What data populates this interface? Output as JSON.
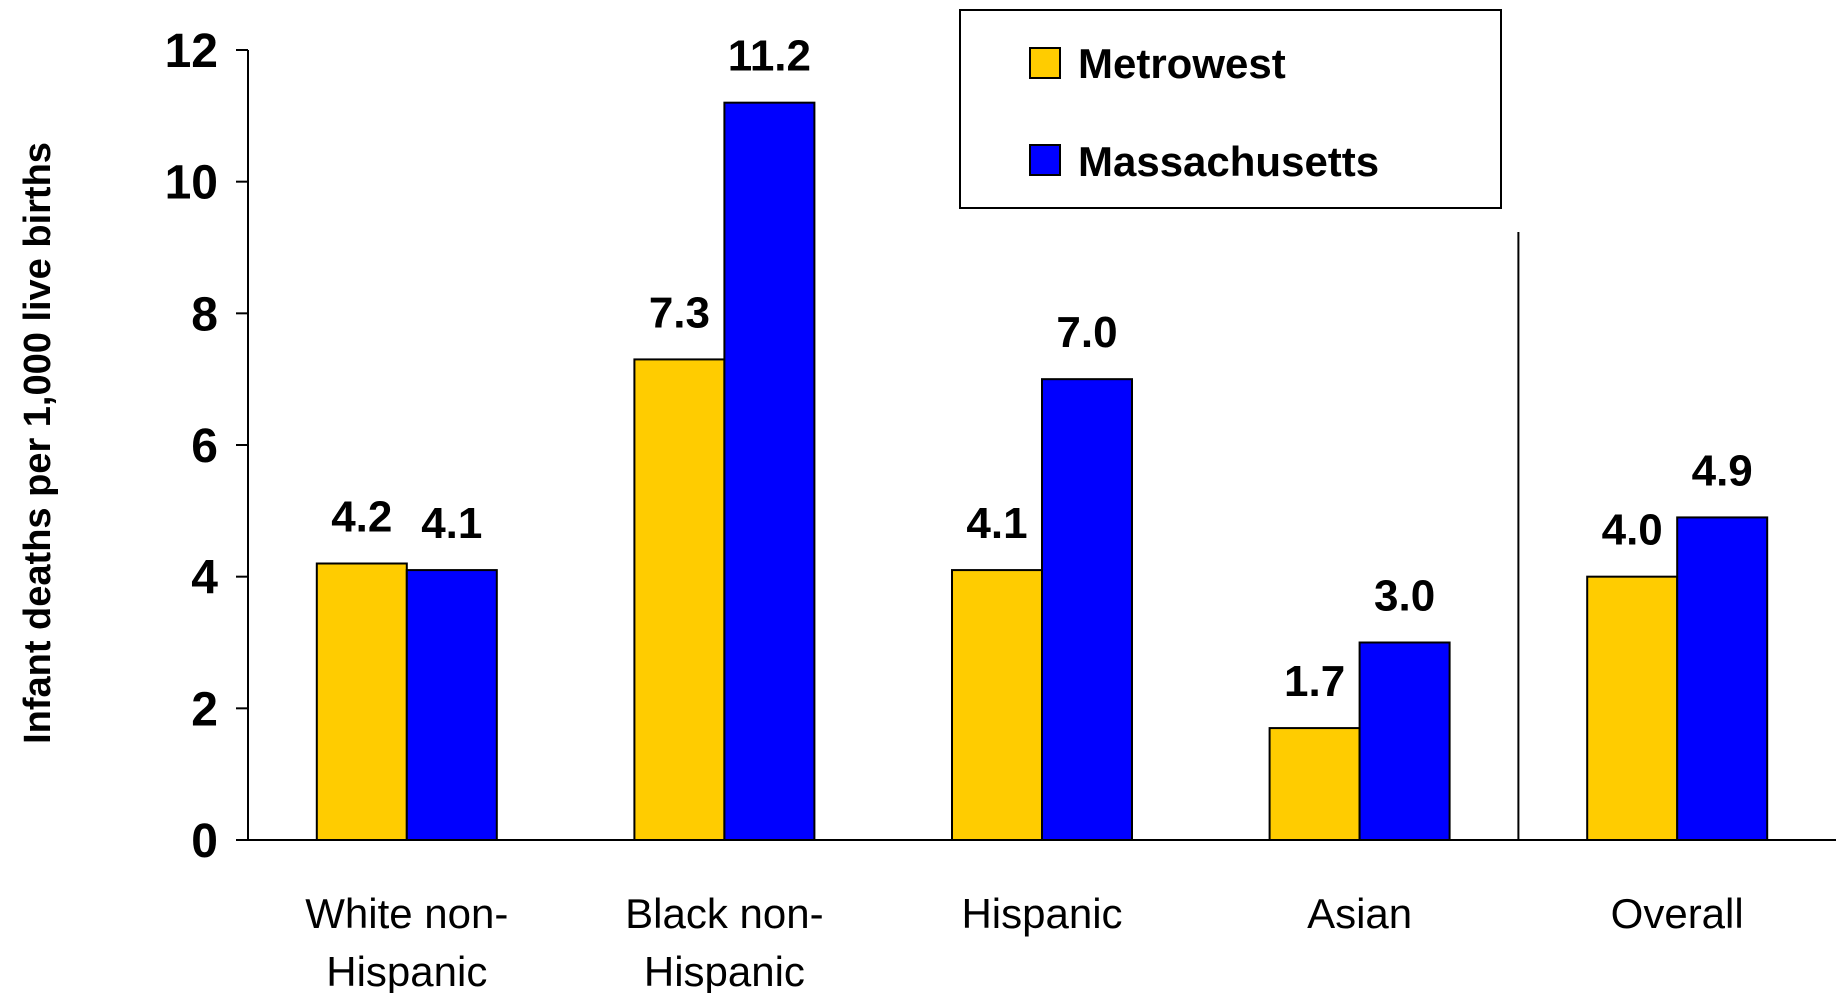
{
  "chart_data": {
    "type": "bar",
    "ylabel": "Infant deaths per 1,000 live births",
    "ylim": [
      0,
      12
    ],
    "yticks": [
      "0",
      "2",
      "4",
      "6",
      "8",
      "10",
      "12"
    ],
    "categories": [
      [
        "White non-",
        "Hispanic"
      ],
      [
        "Black non-",
        "Hispanic"
      ],
      [
        "Hispanic"
      ],
      [
        "Asian"
      ],
      [
        "Overall"
      ]
    ],
    "series": [
      {
        "name": "Metrowest",
        "color": "#FFCC00",
        "values": [
          4.2,
          7.3,
          4.1,
          1.7,
          4.0
        ],
        "labels": [
          "4.2",
          "7.3",
          "4.1",
          "1.7",
          "4.0"
        ]
      },
      {
        "name": "Massachusetts",
        "color": "#0000FF",
        "values": [
          4.1,
          11.2,
          7.0,
          3.0,
          4.9
        ],
        "labels": [
          "4.1",
          "11.2",
          "7.0",
          "3.0",
          "4.9"
        ]
      }
    ],
    "legend_position": "top-right",
    "grid": false,
    "separator_before_category": 4
  }
}
